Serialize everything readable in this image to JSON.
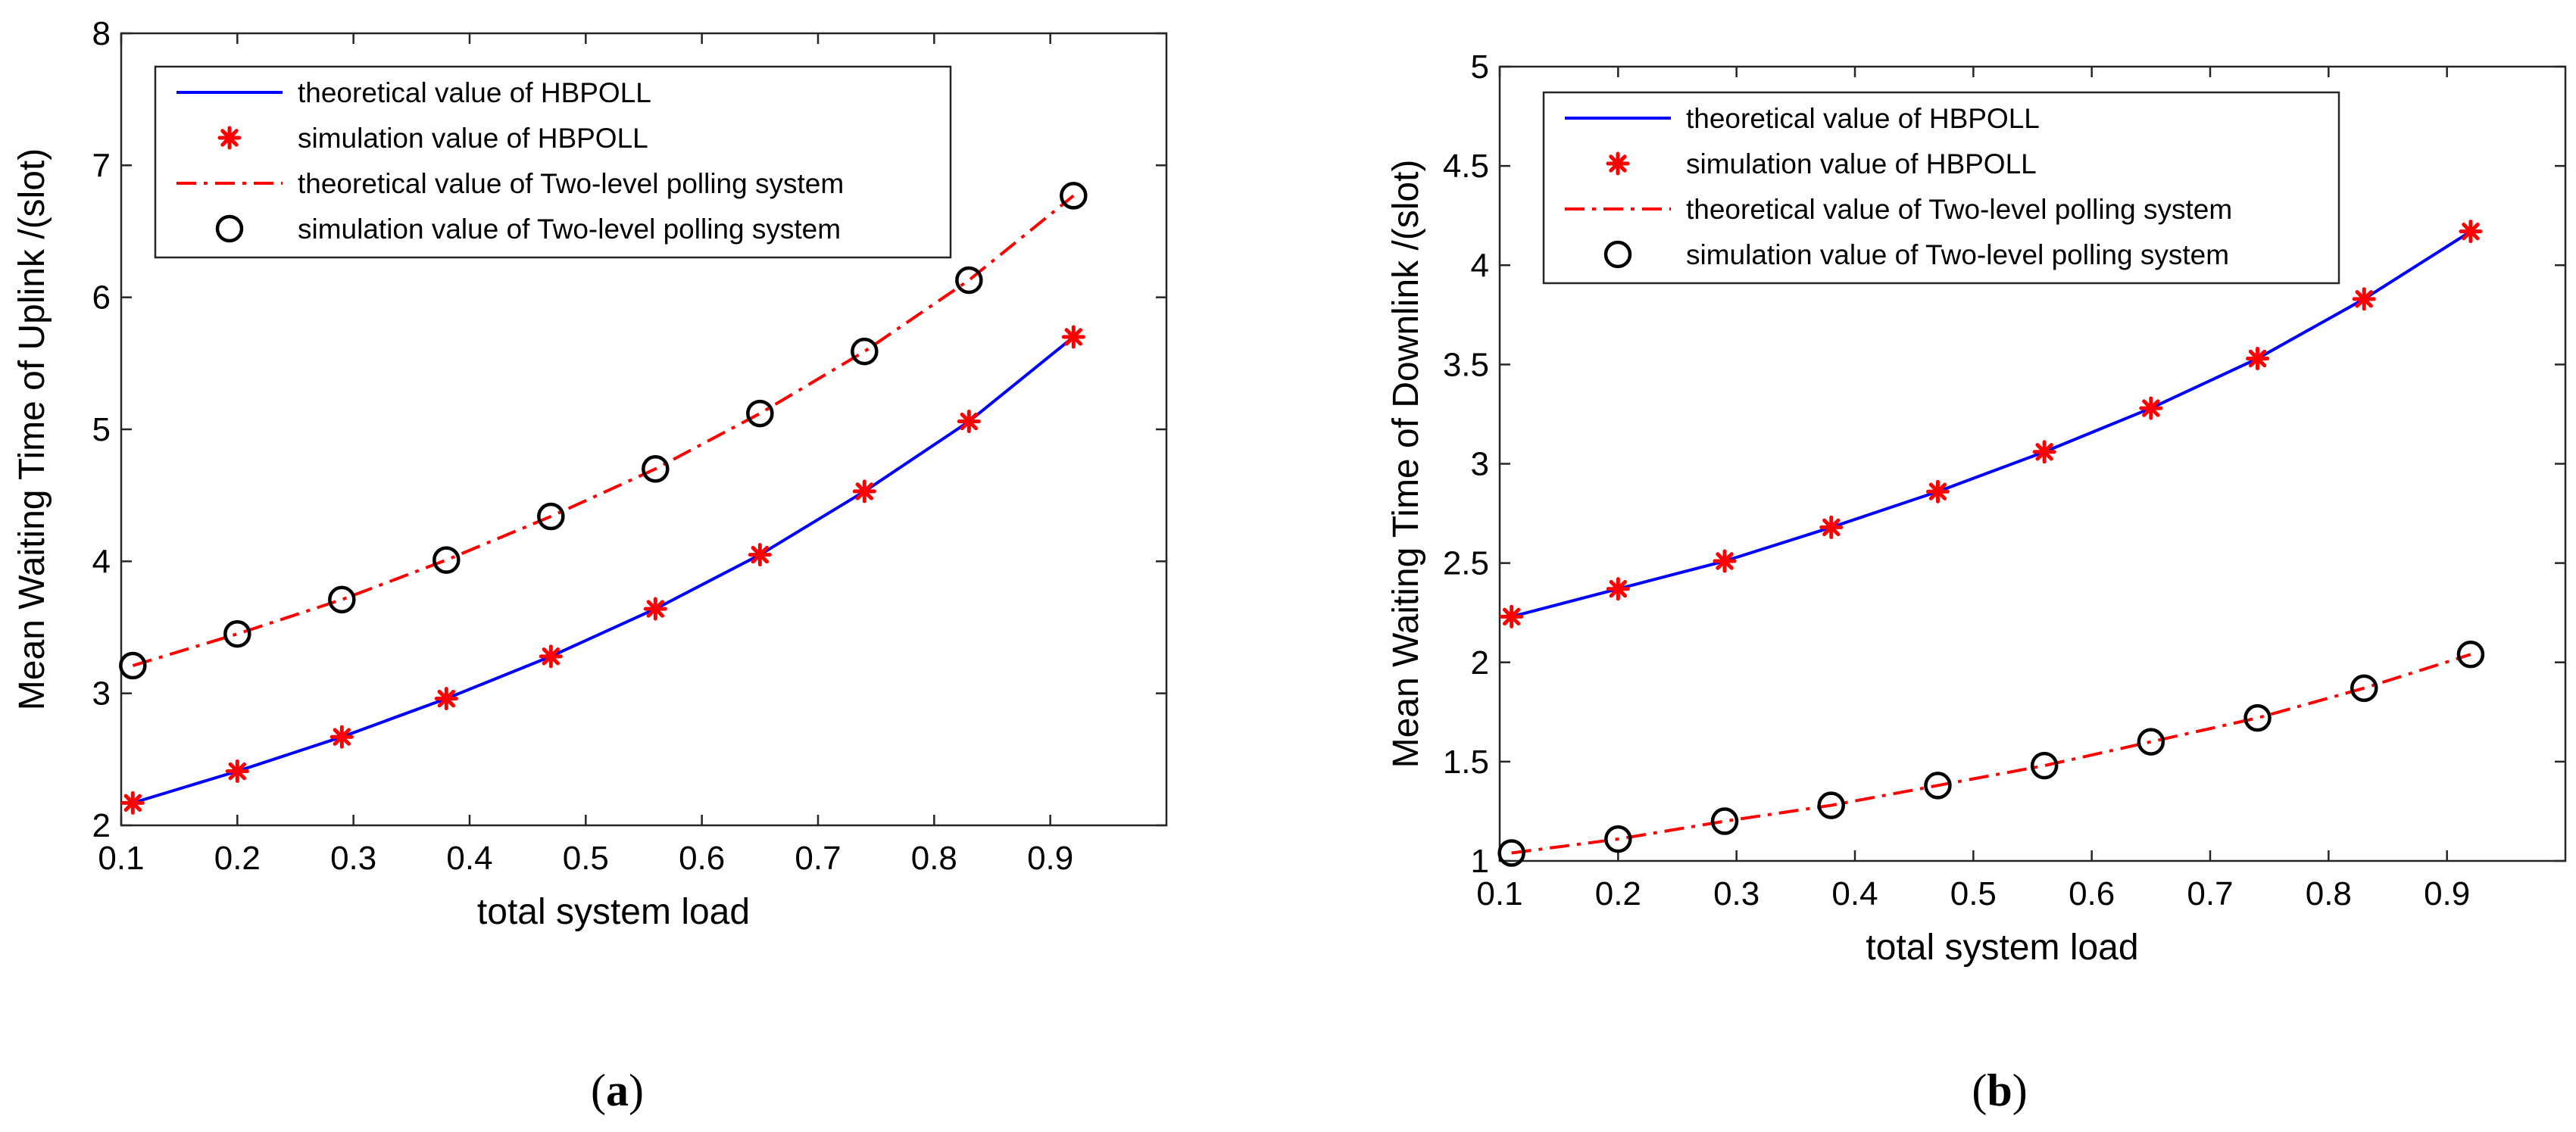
{
  "chart_data": [
    {
      "type": "line",
      "panel_label_prefix": "(",
      "panel_label_letter": "a",
      "panel_label_suffix": ")",
      "xlabel": "total system load",
      "ylabel": "Mean Waiting Time of Uplink /(slot)",
      "xlim": [
        0.1,
        1.0
      ],
      "ylim": [
        2,
        8
      ],
      "xticks": [
        0.1,
        0.2,
        0.3,
        0.4,
        0.5,
        0.6,
        0.7,
        0.8,
        0.9
      ],
      "yticks": [
        2,
        3,
        4,
        5,
        6,
        7,
        8
      ],
      "legend_position": "top-left",
      "x": [
        0.11,
        0.2,
        0.29,
        0.38,
        0.47,
        0.56,
        0.65,
        0.74,
        0.83,
        0.92
      ],
      "series": [
        {
          "name": "theoretical value of HBPOLL",
          "style": "solid",
          "marker": "none",
          "color": "#0000ff",
          "values": [
            2.17,
            2.41,
            2.67,
            2.96,
            3.28,
            3.64,
            4.05,
            4.53,
            5.06,
            5.7
          ]
        },
        {
          "name": "simulation value of HBPOLL",
          "style": "none",
          "marker": "star",
          "color": "#ff0000",
          "values": [
            2.17,
            2.41,
            2.67,
            2.96,
            3.28,
            3.64,
            4.05,
            4.53,
            5.06,
            5.7
          ]
        },
        {
          "name": "theoretical value of Two-level polling system",
          "style": "dashdot",
          "marker": "none",
          "color": "#ff0000",
          "values": [
            3.21,
            3.45,
            3.71,
            4.01,
            4.34,
            4.7,
            5.12,
            5.59,
            6.13,
            6.77
          ]
        },
        {
          "name": "simulation value of Two-level polling system",
          "style": "none",
          "marker": "circle",
          "color": "#000000",
          "values": [
            3.21,
            3.45,
            3.71,
            4.01,
            4.34,
            4.7,
            5.12,
            5.59,
            6.13,
            6.77
          ]
        }
      ]
    },
    {
      "type": "line",
      "panel_label_prefix": "(",
      "panel_label_letter": "b",
      "panel_label_suffix": ")",
      "xlabel": "total system load",
      "ylabel": "Mean Waiting Time of Downlink /(slot)",
      "xlim": [
        0.1,
        1.0
      ],
      "ylim": [
        1,
        5
      ],
      "xticks": [
        0.1,
        0.2,
        0.3,
        0.4,
        0.5,
        0.6,
        0.7,
        0.8,
        0.9
      ],
      "yticks": [
        1,
        1.5,
        2,
        2.5,
        3,
        3.5,
        4,
        4.5,
        5
      ],
      "legend_position": "top-left",
      "x": [
        0.11,
        0.2,
        0.29,
        0.38,
        0.47,
        0.56,
        0.65,
        0.74,
        0.83,
        0.92
      ],
      "series": [
        {
          "name": "theoretical value of HBPOLL",
          "style": "solid",
          "marker": "none",
          "color": "#0000ff",
          "values": [
            2.23,
            2.37,
            2.51,
            2.68,
            2.86,
            3.06,
            3.28,
            3.53,
            3.83,
            4.17
          ]
        },
        {
          "name": "simulation value of HBPOLL",
          "style": "none",
          "marker": "star",
          "color": "#ff0000",
          "values": [
            2.23,
            2.37,
            2.51,
            2.68,
            2.86,
            3.06,
            3.28,
            3.53,
            3.83,
            4.17
          ]
        },
        {
          "name": "theoretical value of Two-level polling system",
          "style": "dashdot",
          "marker": "none",
          "color": "#ff0000",
          "values": [
            1.04,
            1.11,
            1.2,
            1.28,
            1.38,
            1.48,
            1.6,
            1.72,
            1.87,
            2.04
          ]
        },
        {
          "name": "simulation value of Two-level polling system",
          "style": "none",
          "marker": "circle",
          "color": "#000000",
          "values": [
            1.04,
            1.11,
            1.2,
            1.28,
            1.38,
            1.48,
            1.6,
            1.72,
            1.87,
            2.04
          ]
        }
      ]
    }
  ]
}
